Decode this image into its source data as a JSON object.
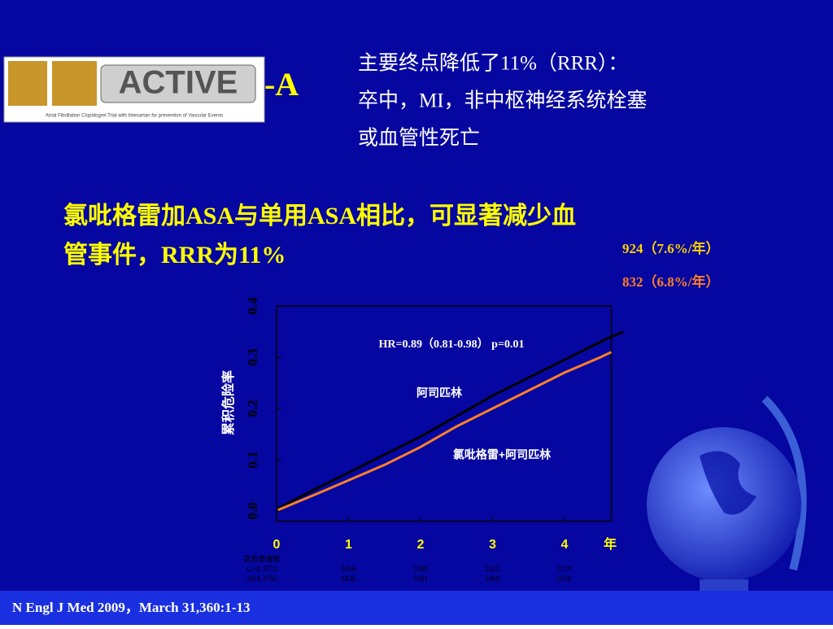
{
  "logo": {
    "name": "ACTIVE",
    "suffix": "-A",
    "tagline": "Atrial Fibrillation Clopidogrel Trial with Irbesartan for prevention of Vascular Events"
  },
  "endpoint_note": {
    "lines": [
      "主要终点降低了11%（RRR）：",
      "卒中，MI，非中枢神经系统栓塞",
      "或血管性死亡"
    ]
  },
  "headline": {
    "lines": [
      "氯吡格雷加ASA与单用ASA相比，可显著减少血",
      "管事件，RRR为11%"
    ]
  },
  "event_counts": [
    "924（7.6%/年）",
    "832（6.8%/年）"
  ],
  "risk_table": {
    "title": "高危患者数",
    "rows": [
      [
        "C+A 3772",
        "3456",
        "3180",
        "2522",
        "1179"
      ],
      [
        "ASA 3782",
        "3426",
        "3181",
        "2460",
        "1156"
      ]
    ]
  },
  "footer": "N Engl J Med 2009，March 31,360:1-13",
  "chart_data": {
    "type": "line",
    "ylabel": "累积危险率",
    "xlabel": "年",
    "annotation": "HR=0.89（0.81-0.98） p=0.01",
    "x": [
      0.02,
      0.5,
      1,
      1.5,
      2,
      2.5,
      3,
      3.5,
      4,
      4.5,
      4.65,
      4.82
    ],
    "series": [
      {
        "name": "阿司匹林",
        "color": "#000000",
        "values": [
          0.005,
          0.04,
          0.075,
          0.11,
          0.145,
          0.185,
          0.225,
          0.26,
          0.295,
          0.33,
          0.34,
          0.35
        ]
      },
      {
        "name": "氯吡格雷+阿司匹林",
        "color": "#ff7f27",
        "values": [
          0.002,
          0.03,
          0.06,
          0.09,
          0.125,
          0.165,
          0.2,
          0.235,
          0.27,
          0.3,
          0.31,
          null
        ]
      }
    ],
    "xlim": [
      0,
      4.65
    ],
    "xticks": [
      0,
      1,
      2,
      3,
      4
    ],
    "ylim": [
      -0.02,
      0.4
    ],
    "yticks": [
      {
        "value": 0,
        "label": "0.0"
      },
      0.1,
      0.2,
      0.3,
      0.4
    ]
  }
}
